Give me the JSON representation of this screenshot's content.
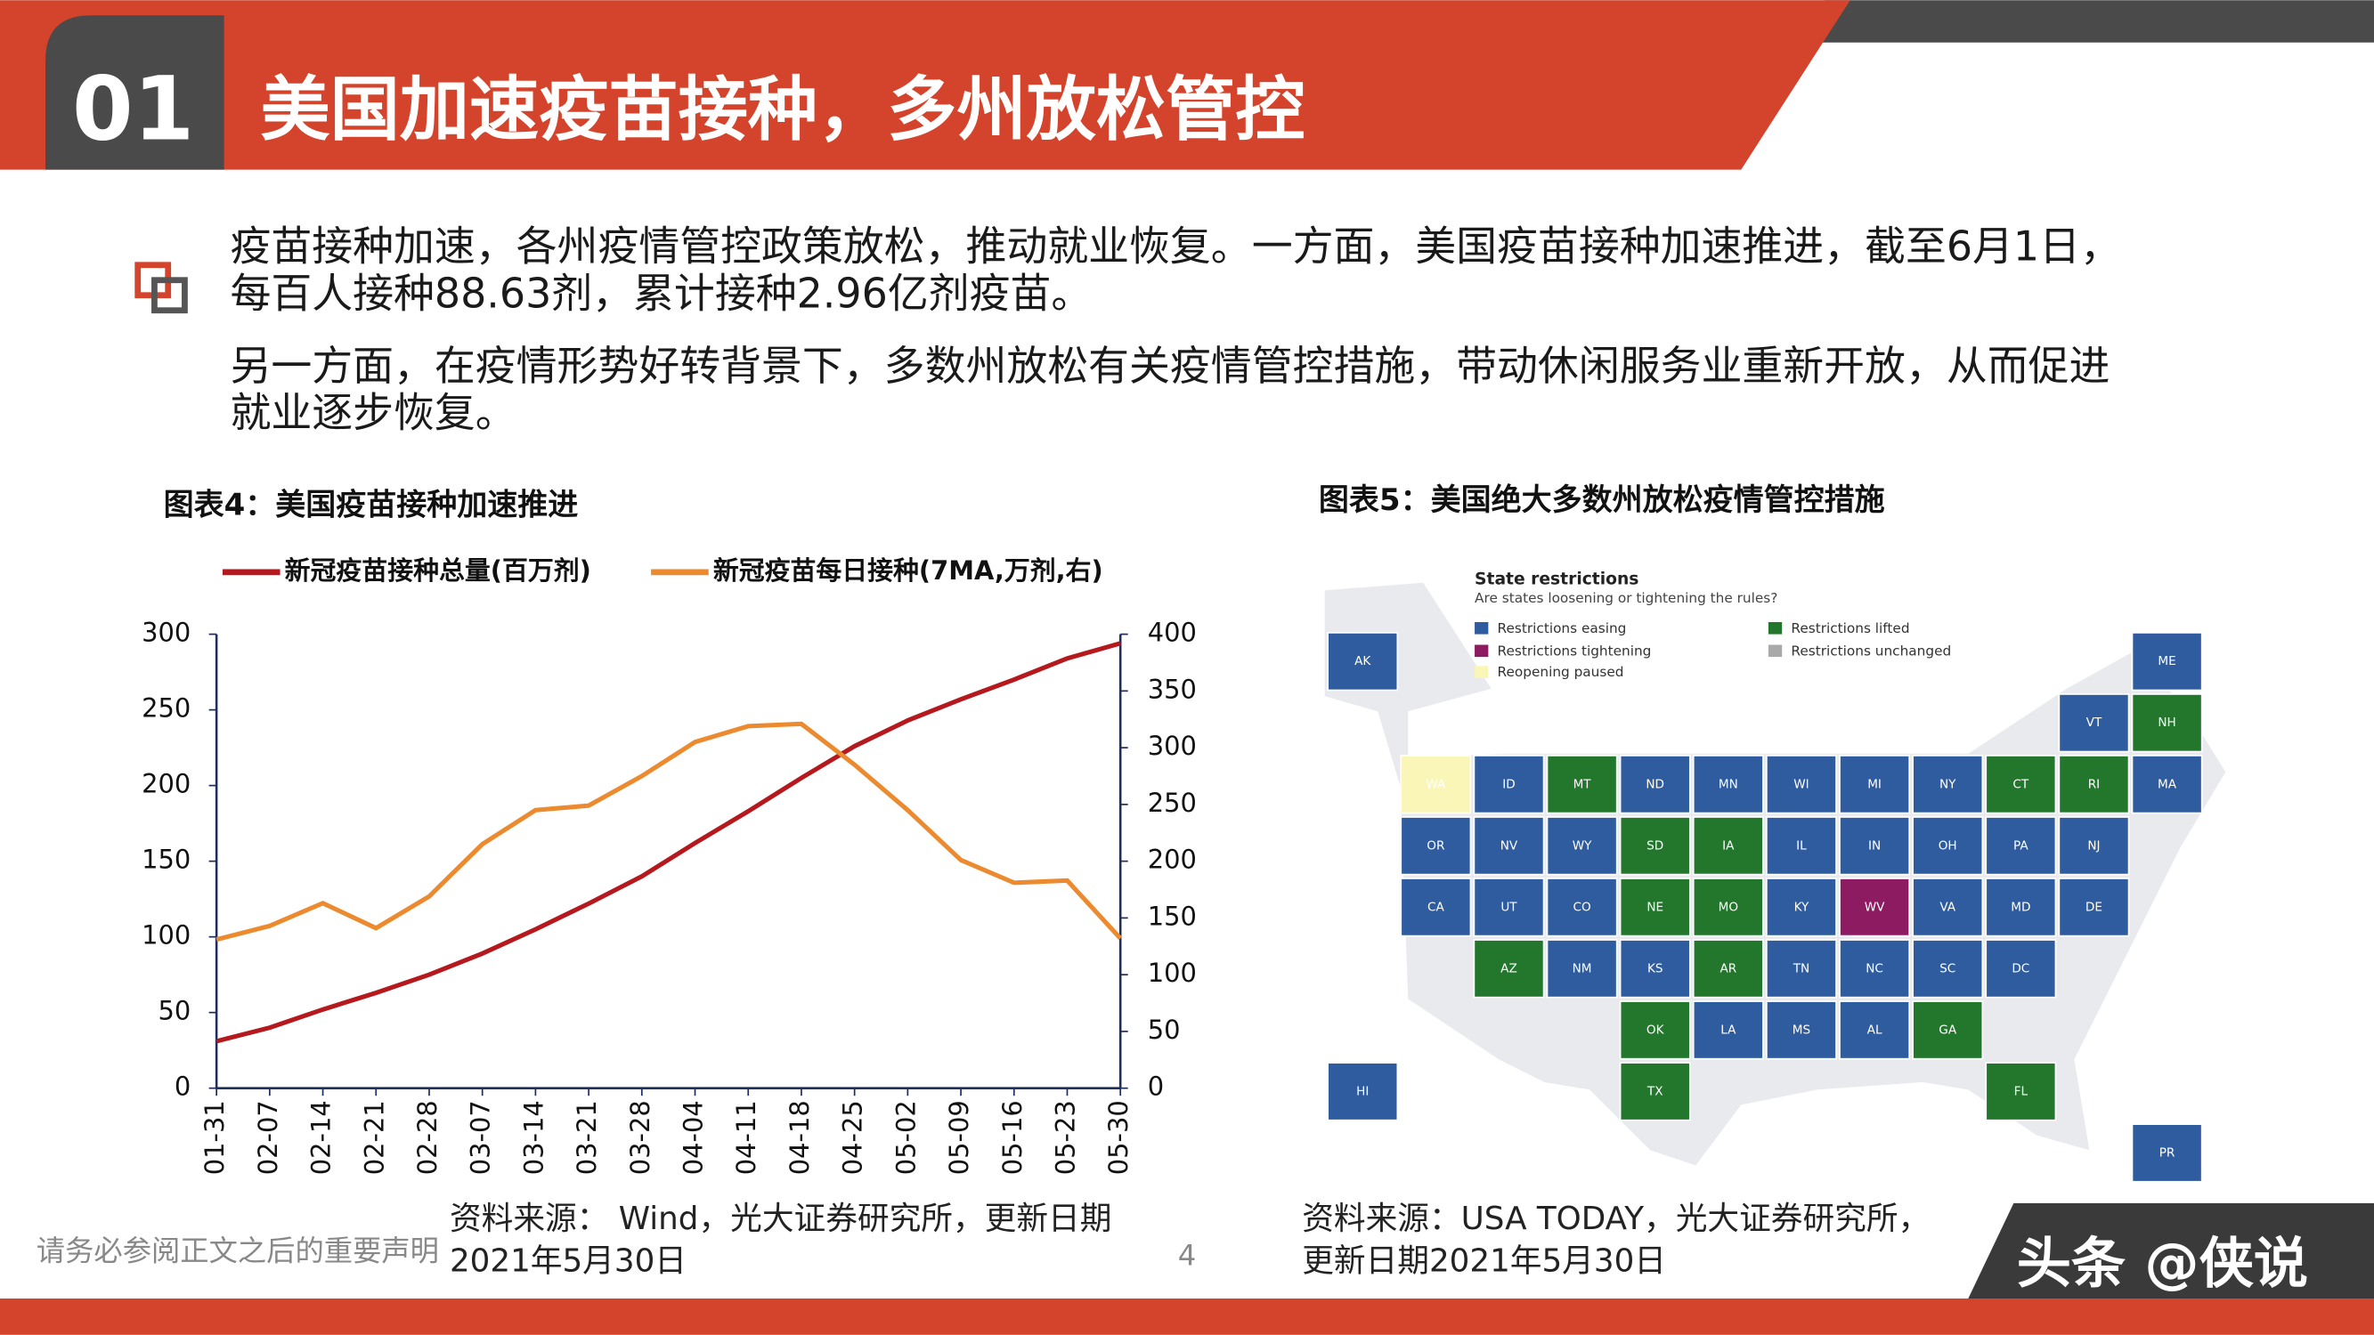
{
  "header": {
    "number": "01",
    "title": "美国加速疫苗接种，多州放松管控"
  },
  "paragraphs": [
    [
      "疫苗接种加速，各州疫情管控政策放松，推动就业恢复。一方面，美国疫苗接种加速推进，截至6月1日，",
      "每百人接种88.63剂，累计接种2.96亿剂疫苗。"
    ],
    [
      "另一方面，在疫情形势好转背景下，多数州放松有关疫情管控措施，带动休闲服务业重新开放，从而促进",
      "就业逐步恢复。"
    ]
  ],
  "chart_data": {
    "type": "line",
    "title": "图表4：美国疫苗接种加速推进",
    "categories": [
      "01-31",
      "02-07",
      "02-14",
      "02-21",
      "02-28",
      "03-07",
      "03-14",
      "03-21",
      "03-28",
      "04-04",
      "04-11",
      "04-18",
      "04-25",
      "05-02",
      "05-09",
      "05-16",
      "05-23",
      "05-30"
    ],
    "series": [
      {
        "name": "新冠疫苗接种总量(百万剂)",
        "color": "#b5181d",
        "values": [
          31,
          40,
          52,
          63,
          75,
          89,
          105,
          122,
          140,
          162,
          183,
          205,
          226,
          243,
          257,
          270,
          284,
          294
        ]
      },
      {
        "name": "新冠疫苗每日接种(7MA,万剂,右)",
        "color": "#ec8a2f",
        "axis": "y2",
        "values": [
          131,
          143,
          163,
          141,
          169,
          215,
          245,
          249,
          275,
          305,
          319,
          321,
          285,
          245,
          201,
          181,
          183,
          132
        ]
      }
    ],
    "ylim": [
      0,
      300
    ],
    "yticks": [
      0,
      50,
      100,
      150,
      200,
      250,
      300
    ],
    "y2lim": [
      0,
      400
    ],
    "y2ticks": [
      0,
      50,
      100,
      150,
      200,
      250,
      300,
      350,
      400
    ],
    "legend": "top",
    "source": [
      "资料来源： Wind，光大证券研究所，更新日期",
      "2021年5月30日"
    ]
  },
  "map": {
    "title": "图表5：美国绝大多数州放松疫情管控措施",
    "heading": "State restrictions",
    "subheading": "Are states loosening or tightening the rules?",
    "legend": [
      {
        "label": "Restrictions easing",
        "color": "#2f5c9e"
      },
      {
        "label": "Restrictions lifted",
        "color": "#23772d"
      },
      {
        "label": "Restrictions tightening",
        "color": "#8c1b62"
      },
      {
        "label": "Restrictions unchanged",
        "color": "#a9a9a9"
      },
      {
        "label": "Reopening paused",
        "color": "#f9f6b8"
      }
    ],
    "tiles": [
      {
        "label": "AK",
        "color": "#2f5c9e"
      },
      {
        "label": "ME",
        "color": "#2f5c9e"
      },
      {
        "label": "VT",
        "color": "#2f5c9e"
      },
      {
        "label": "NH",
        "color": "#23772d"
      },
      {
        "label": "WA",
        "color": "#f9f6b8"
      },
      {
        "label": "ID",
        "color": "#2f5c9e"
      },
      {
        "label": "MT",
        "color": "#23772d"
      },
      {
        "label": "ND",
        "color": "#2f5c9e"
      },
      {
        "label": "MN",
        "color": "#2f5c9e"
      },
      {
        "label": "WI",
        "color": "#2f5c9e"
      },
      {
        "label": "MI",
        "color": "#2f5c9e"
      },
      {
        "label": "NY",
        "color": "#2f5c9e"
      },
      {
        "label": "CT",
        "color": "#23772d"
      },
      {
        "label": "RI",
        "color": "#23772d"
      },
      {
        "label": "MA",
        "color": "#2f5c9e"
      },
      {
        "label": "OR",
        "color": "#2f5c9e"
      },
      {
        "label": "NV",
        "color": "#2f5c9e"
      },
      {
        "label": "WY",
        "color": "#2f5c9e"
      },
      {
        "label": "SD",
        "color": "#23772d"
      },
      {
        "label": "IA",
        "color": "#23772d"
      },
      {
        "label": "IL",
        "color": "#2f5c9e"
      },
      {
        "label": "IN",
        "color": "#2f5c9e"
      },
      {
        "label": "OH",
        "color": "#2f5c9e"
      },
      {
        "label": "PA",
        "color": "#2f5c9e"
      },
      {
        "label": "NJ",
        "color": "#2f5c9e"
      },
      {
        "label": "CA",
        "color": "#2f5c9e"
      },
      {
        "label": "UT",
        "color": "#2f5c9e"
      },
      {
        "label": "CO",
        "color": "#2f5c9e"
      },
      {
        "label": "NE",
        "color": "#23772d"
      },
      {
        "label": "MO",
        "color": "#23772d"
      },
      {
        "label": "KY",
        "color": "#2f5c9e"
      },
      {
        "label": "WV",
        "color": "#8c1b62"
      },
      {
        "label": "VA",
        "color": "#2f5c9e"
      },
      {
        "label": "MD",
        "color": "#2f5c9e"
      },
      {
        "label": "DE",
        "color": "#2f5c9e"
      },
      {
        "label": "AZ",
        "color": "#23772d"
      },
      {
        "label": "NM",
        "color": "#2f5c9e"
      },
      {
        "label": "KS",
        "color": "#2f5c9e"
      },
      {
        "label": "AR",
        "color": "#23772d"
      },
      {
        "label": "TN",
        "color": "#2f5c9e"
      },
      {
        "label": "NC",
        "color": "#2f5c9e"
      },
      {
        "label": "SC",
        "color": "#2f5c9e"
      },
      {
        "label": "DC",
        "color": "#2f5c9e"
      },
      {
        "label": "OK",
        "color": "#23772d"
      },
      {
        "label": "LA",
        "color": "#2f5c9e"
      },
      {
        "label": "MS",
        "color": "#2f5c9e"
      },
      {
        "label": "AL",
        "color": "#2f5c9e"
      },
      {
        "label": "GA",
        "color": "#23772d"
      },
      {
        "label": "HI",
        "color": "#2f5c9e"
      },
      {
        "label": "TX",
        "color": "#23772d"
      },
      {
        "label": "FL",
        "color": "#23772d"
      },
      {
        "label": "PR",
        "color": "#2f5c9e"
      }
    ],
    "source": [
      "资料来源：USA TODAY，光大证券研究所，",
      "更新日期2021年5月30日"
    ]
  },
  "footer": {
    "disclaimer": "请务必参阅正文之后的重要声明",
    "page": "4",
    "watermark": "头条 @侠说"
  }
}
